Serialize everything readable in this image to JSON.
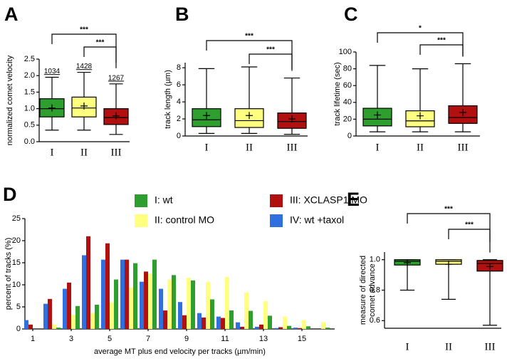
{
  "chart_data": [
    {
      "type": "box",
      "label": "A",
      "ylabel": "normalized comet velocity",
      "categories": [
        "I",
        "II",
        "III"
      ],
      "colors": [
        "#2e9e2e",
        "#ffff80",
        "#b01010"
      ],
      "ylim": [
        0,
        2.5
      ],
      "yticks": [
        {
          "value": 0,
          "label": "0.0"
        },
        0.5,
        {
          "value": 1,
          "label": "1.0"
        },
        1.5,
        {
          "value": 2,
          "label": "2.0"
        },
        2.5
      ],
      "boxes": [
        {
          "min": 0.35,
          "q1": 0.75,
          "median": 1.0,
          "q3": 1.3,
          "max": 1.95,
          "mean": 1.02
        },
        {
          "min": 0.35,
          "q1": 0.75,
          "median": 1.02,
          "q3": 1.35,
          "max": 2.1,
          "mean": 1.08
        },
        {
          "min": 0.22,
          "q1": 0.52,
          "median": 0.73,
          "q3": 1.0,
          "max": 1.75,
          "mean": 0.78
        }
      ],
      "counts": [
        1034,
        1428,
        1267
      ],
      "significance": [
        {
          "from": 0,
          "to": 2,
          "label": "***"
        },
        {
          "from": 1,
          "to": 2,
          "label": "***"
        }
      ]
    },
    {
      "type": "box",
      "label": "B",
      "ylabel": "track length (µm)",
      "categories": [
        "I",
        "II",
        "III"
      ],
      "colors": [
        "#2e9e2e",
        "#ffff80",
        "#b01010"
      ],
      "ylim": [
        0,
        8.6
      ],
      "yticks": [
        0,
        2,
        4,
        6,
        8
      ],
      "boxes": [
        {
          "min": 0.3,
          "q1": 1.1,
          "median": 1.9,
          "q3": 3.2,
          "max": 7.9,
          "mean": 2.4
        },
        {
          "min": 0.3,
          "q1": 1.0,
          "median": 1.8,
          "q3": 3.2,
          "max": 8.1,
          "mean": 2.4
        },
        {
          "min": 0.2,
          "q1": 0.9,
          "median": 1.7,
          "q3": 2.7,
          "max": 6.8,
          "mean": 2.0
        }
      ],
      "significance": [
        {
          "from": 0,
          "to": 2,
          "label": "***"
        },
        {
          "from": 1,
          "to": 2,
          "label": "***"
        }
      ]
    },
    {
      "type": "box",
      "label": "C",
      "ylabel": "track lifetime (sec)",
      "categories": [
        "I",
        "II",
        "III"
      ],
      "colors": [
        "#2e9e2e",
        "#ffff80",
        "#b01010"
      ],
      "ylim": [
        0,
        100
      ],
      "yticks": [
        0,
        20,
        40,
        60,
        80,
        100
      ],
      "boxes": [
        {
          "min": 5,
          "q1": 12,
          "median": 20,
          "q3": 33,
          "max": 84,
          "mean": 25
        },
        {
          "min": 5,
          "q1": 11,
          "median": 18,
          "q3": 30,
          "max": 80,
          "mean": 24
        },
        {
          "min": 5,
          "q1": 15,
          "median": 22,
          "q3": 36,
          "max": 86,
          "mean": 28
        }
      ],
      "significance": [
        {
          "from": 0,
          "to": 2,
          "label": "*"
        },
        {
          "from": 1,
          "to": 2,
          "label": "***"
        }
      ]
    },
    {
      "type": "bar",
      "label": "D",
      "ylabel": "percent of tracks (%)",
      "xlabel": "average MT plus end velocity per tracks (µm/min)",
      "categories": [
        "1",
        null,
        "3",
        null,
        "5",
        null,
        "7",
        null,
        "9",
        null,
        "11",
        null,
        "13",
        null,
        "15",
        null
      ],
      "ylim": [
        0,
        25
      ],
      "yticks": [
        0,
        5,
        10,
        15,
        20,
        25
      ],
      "series": [
        {
          "name": "IV: wt +taxol",
          "color": "#2f6fe0",
          "values": [
            2.0,
            5.7,
            9.1,
            16.7,
            15.7,
            15.7,
            10.7,
            9.1,
            6.1,
            3.6,
            2.8,
            1.5,
            0.5,
            0.2,
            0.3,
            0
          ]
        },
        {
          "name": "III: XCLASP1 MO",
          "color": "#b01010",
          "values": [
            1.0,
            6.8,
            10.5,
            21.0,
            19.4,
            15.7,
            13.0,
            4.2,
            3.1,
            2.6,
            2.5,
            0.5,
            1.0,
            0.4,
            0.2,
            0
          ]
        },
        {
          "name": "II: control MO",
          "color": "#ffff80",
          "values": [
            0,
            1.0,
            3.2,
            3.6,
            6.0,
            9.4,
            12.5,
            11.2,
            11.6,
            10.7,
            11.8,
            8.3,
            6.3,
            2.8,
            2.0,
            1.5
          ]
        },
        {
          "name": "I: wt",
          "color": "#2e9e2e",
          "values": [
            0,
            0.3,
            5.2,
            5.5,
            11.2,
            14.9,
            15.7,
            12.2,
            11.0,
            6.7,
            4.2,
            4.1,
            3.0,
            0.7,
            0.6,
            0.3
          ]
        }
      ]
    },
    {
      "type": "box",
      "label": "E",
      "ylabel": [
        "measure of directed",
        "comet advance"
      ],
      "categories": [
        "I",
        "II",
        "III"
      ],
      "colors": [
        "#2e9e2e",
        "#ffff80",
        "#b01010"
      ],
      "ylim": [
        0.55,
        1.05
      ],
      "yticks": [
        0.6,
        0.8,
        {
          "value": 1,
          "label": "1.0"
        }
      ],
      "boxes": [
        {
          "min": 0.8,
          "q1": 0.965,
          "median": 0.99,
          "q3": 1.0,
          "max": 1.0,
          "mean": 0.98
        },
        {
          "min": 0.74,
          "q1": 0.97,
          "median": 0.99,
          "q3": 1.0,
          "max": 1.0,
          "mean": 0.97
        },
        {
          "min": 0.57,
          "q1": 0.925,
          "median": 0.975,
          "q3": 0.995,
          "max": 1.0,
          "mean": 0.955
        }
      ],
      "significance": [
        {
          "from": 0,
          "to": 2,
          "label": "***"
        },
        {
          "from": 1,
          "to": 2,
          "label": "***"
        }
      ]
    }
  ]
}
